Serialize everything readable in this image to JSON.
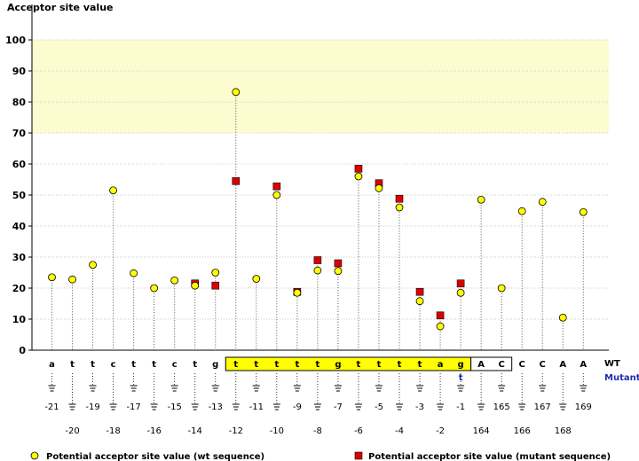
{
  "chart_data": {
    "type": "scatter",
    "title": "",
    "ylabel": "Acceptor site value",
    "ylim": [
      0,
      100
    ],
    "yticks": [
      0,
      10,
      20,
      30,
      40,
      50,
      60,
      70,
      80,
      90,
      100
    ],
    "highlight_band": [
      70,
      100
    ],
    "highlight_color": "#fdfbd0",
    "row_labels": {
      "wt": "WT",
      "mutant": "Mutant"
    },
    "positions": [
      {
        "base": "a",
        "pos": "-21",
        "wt": 23.5,
        "mut": null
      },
      {
        "base": "t",
        "pos": "-20",
        "wt": 22.8,
        "mut": null
      },
      {
        "base": "t",
        "pos": "-19",
        "wt": 27.5,
        "mut": null
      },
      {
        "base": "c",
        "pos": "-18",
        "wt": 51.5,
        "mut": null
      },
      {
        "base": "t",
        "pos": "-17",
        "wt": 24.8,
        "mut": null
      },
      {
        "base": "t",
        "pos": "-16",
        "wt": 20.0,
        "mut": null
      },
      {
        "base": "c",
        "pos": "-15",
        "wt": 22.5,
        "mut": null
      },
      {
        "base": "t",
        "pos": "-14",
        "wt": 20.8,
        "mut": 21.5
      },
      {
        "base": "g",
        "pos": "-13",
        "wt": 25.0,
        "mut": 20.8
      },
      {
        "base": "t",
        "pos": "-12",
        "wt": 83.2,
        "mut": 54.5
      },
      {
        "base": "t",
        "pos": "-11",
        "wt": 23.0,
        "mut": null
      },
      {
        "base": "t",
        "pos": "-10",
        "wt": 50.0,
        "mut": 52.8
      },
      {
        "base": "t",
        "pos": "-9",
        "wt": 18.5,
        "mut": 18.8
      },
      {
        "base": "t",
        "pos": "-8",
        "wt": 25.7,
        "mut": 29.0
      },
      {
        "base": "g",
        "pos": "-7",
        "wt": 25.5,
        "mut": 28.0
      },
      {
        "base": "t",
        "pos": "-6",
        "wt": 56.0,
        "mut": 58.5
      },
      {
        "base": "t",
        "pos": "-5",
        "wt": 52.2,
        "mut": 53.8
      },
      {
        "base": "t",
        "pos": "-4",
        "wt": 46.0,
        "mut": 48.8
      },
      {
        "base": "t",
        "pos": "-3",
        "wt": 15.8,
        "mut": 18.8
      },
      {
        "base": "a",
        "pos": "-2",
        "wt": 7.7,
        "mut": 11.2
      },
      {
        "base": "g",
        "pos": "-1",
        "wt": 18.5,
        "mut": 21.5,
        "mutant_base": "t"
      },
      {
        "base": "A",
        "pos": "164",
        "wt": 48.5,
        "mut": null
      },
      {
        "base": "C",
        "pos": "165",
        "wt": 20.0,
        "mut": null
      },
      {
        "base": "C",
        "pos": "166",
        "wt": 44.8,
        "mut": null
      },
      {
        "base": "C",
        "pos": "167",
        "wt": 47.8,
        "mut": null
      },
      {
        "base": "A",
        "pos": "168",
        "wt": 10.5,
        "mut": null
      },
      {
        "base": "A",
        "pos": "169",
        "wt": 44.5,
        "mut": null
      }
    ],
    "intron_box": {
      "from": 9,
      "to": 20,
      "fill": "#ffff00"
    },
    "exon_box": {
      "from": 21,
      "to": 22,
      "fill": "#ffffff"
    },
    "wt_color": "#ffff00",
    "mut_color": "#dd0000",
    "legend": [
      {
        "marker": "circle",
        "label": "Potential acceptor site value (wt sequence)"
      },
      {
        "marker": "square",
        "label": "Potential acceptor site value (mutant sequence)"
      }
    ]
  }
}
